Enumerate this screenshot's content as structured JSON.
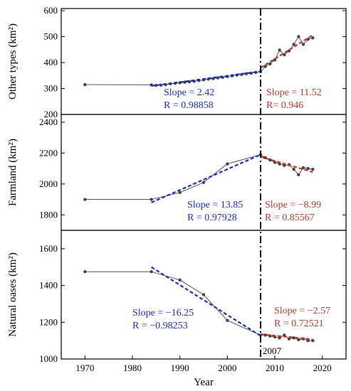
{
  "chart_data": [
    {
      "type": "line",
      "ylabel": "Other types (km²)",
      "ylim": [
        200,
        600
      ],
      "yticks": [
        "200",
        "300",
        "400",
        "500",
        "600"
      ],
      "series": [
        {
          "x": [
            1970,
            1984,
            1985,
            1986,
            1987,
            1988,
            1989,
            1990,
            1991,
            1992,
            1993,
            1994,
            1995,
            1996,
            1997,
            1998,
            1999,
            2000,
            2001,
            2002,
            2003,
            2004,
            2005,
            2006,
            2007,
            2008,
            2009,
            2010,
            2011,
            2012,
            2013,
            2014,
            2015,
            2016,
            2017,
            2018
          ],
          "y": [
            315,
            314,
            312,
            313,
            315,
            318,
            320,
            322,
            324,
            326,
            328,
            331,
            333,
            336,
            338,
            341,
            343,
            346,
            349,
            352,
            354,
            357,
            359,
            362,
            365,
            385,
            395,
            410,
            448,
            430,
            445,
            470,
            500,
            470,
            490,
            495
          ],
          "color": "#555555"
        }
      ],
      "fits": [
        {
          "x": [
            1984,
            2007
          ],
          "y": [
            310,
            366
          ],
          "color": "#1a2fd0",
          "slope": "Slope = 2.42",
          "r": "R = 0.98858"
        },
        {
          "x": [
            2007,
            2018
          ],
          "y": [
            380,
            506
          ],
          "color": "#c0392b",
          "slope": "Slope = 11.52",
          "r": "R= 0.946"
        }
      ]
    },
    {
      "type": "line",
      "ylabel": "Farmland (km²)",
      "ylim": [
        1700,
        2450
      ],
      "yticks": [
        "1800",
        "2000",
        "2200",
        "2400"
      ],
      "series": [
        {
          "x": [
            1970,
            1984,
            1990,
            1995,
            2000,
            2007,
            2008,
            2009,
            2010,
            2011,
            2012,
            2013,
            2014,
            2015,
            2016,
            2017,
            2018
          ],
          "y": [
            1900,
            1900,
            1945,
            2010,
            2130,
            2190,
            2170,
            2155,
            2140,
            2130,
            2120,
            2125,
            2095,
            2060,
            2105,
            2100,
            2095
          ],
          "color": "#555555"
        }
      ],
      "fits": [
        {
          "x": [
            1984,
            2007
          ],
          "y": [
            1880,
            2190
          ],
          "color": "#1a2fd0",
          "slope": "Slope = 13.85",
          "r": "R = 0.97928"
        },
        {
          "x": [
            2007,
            2018
          ],
          "y": [
            2176,
            2077
          ],
          "color": "#c0392b",
          "slope": "Slope = −8.99",
          "r": "R = 0.85567"
        }
      ]
    },
    {
      "type": "line",
      "ylabel": "Natural oases (km²)",
      "ylim": [
        1000,
        1700
      ],
      "yticks": [
        "1000",
        "1200",
        "1400",
        "1600"
      ],
      "xlabel": "Year",
      "xlim": [
        1965,
        2025
      ],
      "xticks": [
        "1970",
        "1980",
        "1990",
        "2000",
        "2010",
        "2020"
      ],
      "series": [
        {
          "x": [
            1970,
            1984,
            1990,
            1995,
            2000,
            2007,
            2008,
            2009,
            2010,
            2011,
            2012,
            2013,
            2014,
            2015,
            2016,
            2017,
            2018
          ],
          "y": [
            1475,
            1475,
            1430,
            1350,
            1210,
            1130,
            1130,
            1125,
            1120,
            1115,
            1130,
            1110,
            1115,
            1105,
            1110,
            1100,
            1100
          ],
          "color": "#555555"
        }
      ],
      "fits": [
        {
          "x": [
            1984,
            2007
          ],
          "y": [
            1500,
            1126
          ],
          "color": "#1a2fd0",
          "slope": "Slope = −16.25",
          "r": "R = −0.98253"
        },
        {
          "x": [
            2007,
            2018
          ],
          "y": [
            1135,
            1107
          ],
          "color": "#c0392b",
          "slope": "Slope = −2.57",
          "r": "R = 0.72521"
        }
      ]
    }
  ],
  "divider_label": "2007",
  "divider_year": 2007
}
